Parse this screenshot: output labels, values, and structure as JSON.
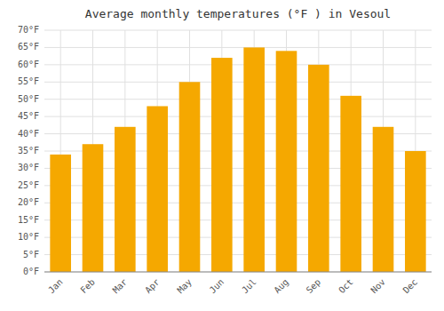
{
  "chart_data": {
    "type": "bar",
    "title": "Average monthly temperatures (°F ) in Vesoul",
    "categories": [
      "Jan",
      "Feb",
      "Mar",
      "Apr",
      "May",
      "Jun",
      "Jul",
      "Aug",
      "Sep",
      "Oct",
      "Nov",
      "Dec"
    ],
    "values": [
      34,
      37,
      42,
      48,
      55,
      62,
      65,
      64,
      60,
      51,
      42,
      35
    ],
    "color": "#F5A800",
    "ylim": [
      0,
      70
    ],
    "yticks": [
      {
        "value": 0,
        "label": "0°F"
      },
      {
        "value": 5,
        "label": "5°F"
      },
      {
        "value": 10,
        "label": "10°F"
      },
      {
        "value": 15,
        "label": "15°F"
      },
      {
        "value": 20,
        "label": "20°F"
      },
      {
        "value": 25,
        "label": "25°F"
      },
      {
        "value": 30,
        "label": "30°F"
      },
      {
        "value": 35,
        "label": "35°F"
      },
      {
        "value": 40,
        "label": "40°F"
      },
      {
        "value": 45,
        "label": "45°F"
      },
      {
        "value": 50,
        "label": "50°F"
      },
      {
        "value": 55,
        "label": "55°F"
      },
      {
        "value": 60,
        "label": "60°F"
      },
      {
        "value": 65,
        "label": "65°F"
      },
      {
        "value": 70,
        "label": "70°F"
      }
    ],
    "grid": true
  }
}
